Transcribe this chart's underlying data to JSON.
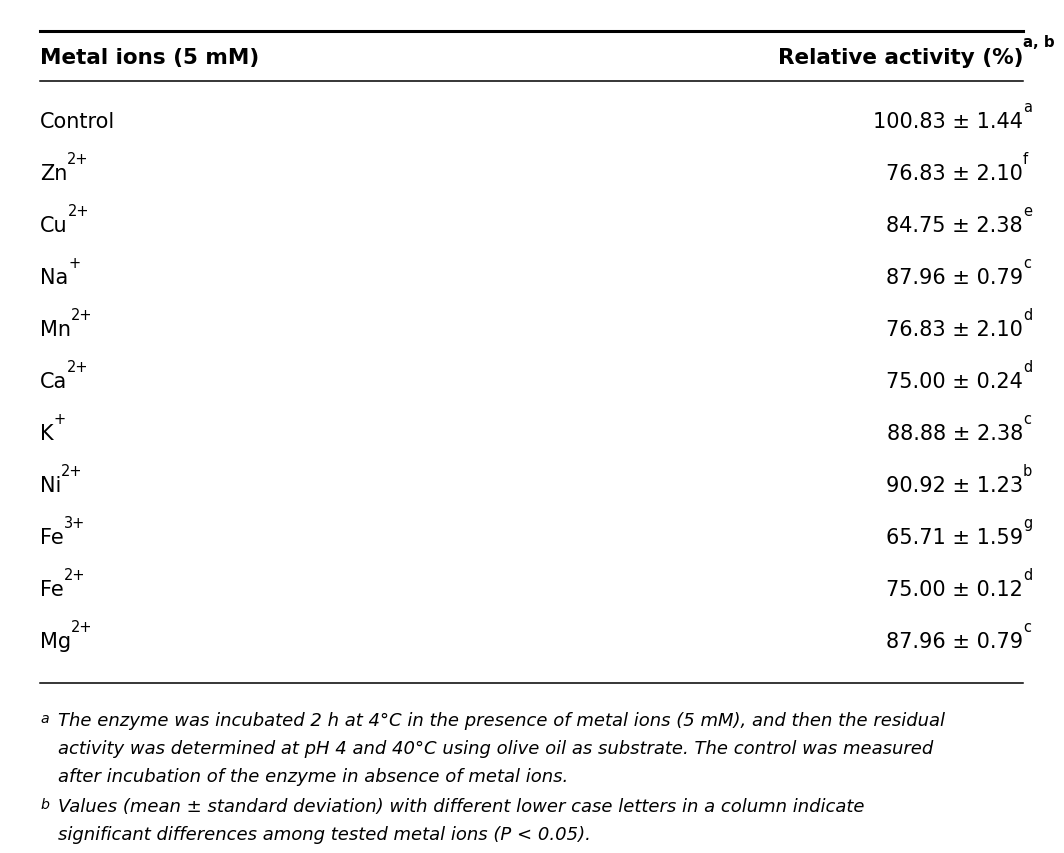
{
  "header_col1": "Metal ions (5 mM)",
  "header_col2": "Relative activity (%)",
  "header_superscript": "a, b",
  "rows": [
    {
      "ion_base": "Control",
      "ion_sup": "",
      "value": "100.83 ± 1.44",
      "val_sup": "a"
    },
    {
      "ion_base": "Zn",
      "ion_sup": "2+",
      "value": "76.83 ± 2.10",
      "val_sup": "f"
    },
    {
      "ion_base": "Cu",
      "ion_sup": "2+",
      "value": "84.75 ± 2.38",
      "val_sup": "e"
    },
    {
      "ion_base": "Na",
      "ion_sup": "+",
      "value": "87.96 ± 0.79",
      "val_sup": "c"
    },
    {
      "ion_base": "Mn",
      "ion_sup": "2+",
      "value": "76.83 ± 2.10",
      "val_sup": "d"
    },
    {
      "ion_base": "Ca",
      "ion_sup": "2+",
      "value": "75.00 ± 0.24",
      "val_sup": "d"
    },
    {
      "ion_base": "K",
      "ion_sup": "+",
      "value": "88.88 ± 2.38",
      "val_sup": "c"
    },
    {
      "ion_base": "Ni",
      "ion_sup": "2+",
      "value": "90.92 ± 1.23",
      "val_sup": "b"
    },
    {
      "ion_base": "Fe",
      "ion_sup": "3+",
      "value": "65.71 ± 1.59",
      "val_sup": "g"
    },
    {
      "ion_base": "Fe",
      "ion_sup": "2+",
      "value": "75.00 ± 0.12",
      "val_sup": "d"
    },
    {
      "ion_base": "Mg",
      "ion_sup": "2+",
      "value": "87.96 ± 0.79",
      "val_sup": "c"
    }
  ],
  "footnote_a_text": "The enzyme was incubated 2 h at 4°C in the presence of metal ions (5 mM), and then the residual activity was determined at pH 4 and 40°C using olive oil as substrate. The control was measured after incubation of the enzyme in absence of metal ions.",
  "footnote_b_text": "Values (mean ± standard deviation) with different lower case letters in a column indicate significant differences among tested metal ions (P < 0.05).",
  "bg_color": "#ffffff",
  "text_color": "#000000",
  "header_fontsize": 15.5,
  "body_fontsize": 15.0,
  "footnote_fontsize": 13.0,
  "sup_fontsize_ratio": 0.7
}
